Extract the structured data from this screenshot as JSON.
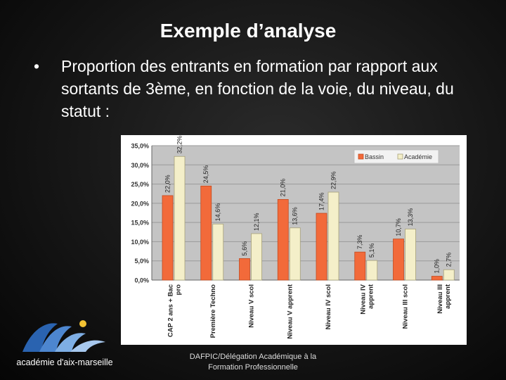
{
  "slide": {
    "title": "Exemple d’analyse",
    "bullet_marker": "•",
    "bullet_text": "Proportion des entrants en formation par rapport aux sortants de 3ème, en fonction de la voie, du niveau, du statut :",
    "footer_line1": "DAFPIC/Délégation Académique à la",
    "footer_line2": "Formation Professionnelle",
    "logo_text": "académie d'aix-marseille"
  },
  "colors": {
    "bassin": "#f26a3a",
    "academie": "#f4efc9",
    "plot_background": "#c4c4c4",
    "gridline": "#9a9a9a"
  },
  "chart_data": {
    "type": "bar",
    "title": "",
    "xlabel": "",
    "ylabel": "",
    "ylim": [
      0,
      35
    ],
    "yticks": [
      "0,0%",
      "5,0%",
      "10,0%",
      "15,0%",
      "20,0%",
      "25,0%",
      "30,0%",
      "35,0%"
    ],
    "ytick_values": [
      0,
      5,
      10,
      15,
      20,
      25,
      30,
      35
    ],
    "grid": true,
    "legend_position": "top-right",
    "categories": [
      "CAP 2 ans + Bac pro",
      "Première Techno",
      "Niveau V scol",
      "Niveau V apprent",
      "Niveau IV scol",
      "Niveau IV apprent",
      "Niveau III scol",
      "Niveau III apprent"
    ],
    "category_lines": [
      [
        "CAP 2 ans + Bac",
        "pro"
      ],
      [
        "Première Techno"
      ],
      [
        "Niveau V scol"
      ],
      [
        "Niveau V apprent"
      ],
      [
        "Niveau IV scol"
      ],
      [
        "Niveau IV",
        "apprent"
      ],
      [
        "Niveau III scol"
      ],
      [
        "Niveau III",
        "apprent"
      ]
    ],
    "series": [
      {
        "name": "Bassin",
        "values": [
          22.0,
          24.5,
          5.6,
          21.0,
          17.4,
          7.3,
          10.7,
          1.0
        ],
        "labels": [
          "22,0%",
          "24,5%",
          "5,6%",
          "21,0%",
          "17,4%",
          "7,3%",
          "10,7%",
          "1,0%"
        ]
      },
      {
        "name": "Académie",
        "values": [
          32.2,
          14.6,
          12.1,
          13.6,
          22.9,
          5.1,
          13.3,
          2.7
        ],
        "labels": [
          "32,2%",
          "14,6%",
          "12,1%",
          "13,6%",
          "22,9%",
          "5,1%",
          "13,3%",
          "2,7%"
        ]
      }
    ]
  }
}
